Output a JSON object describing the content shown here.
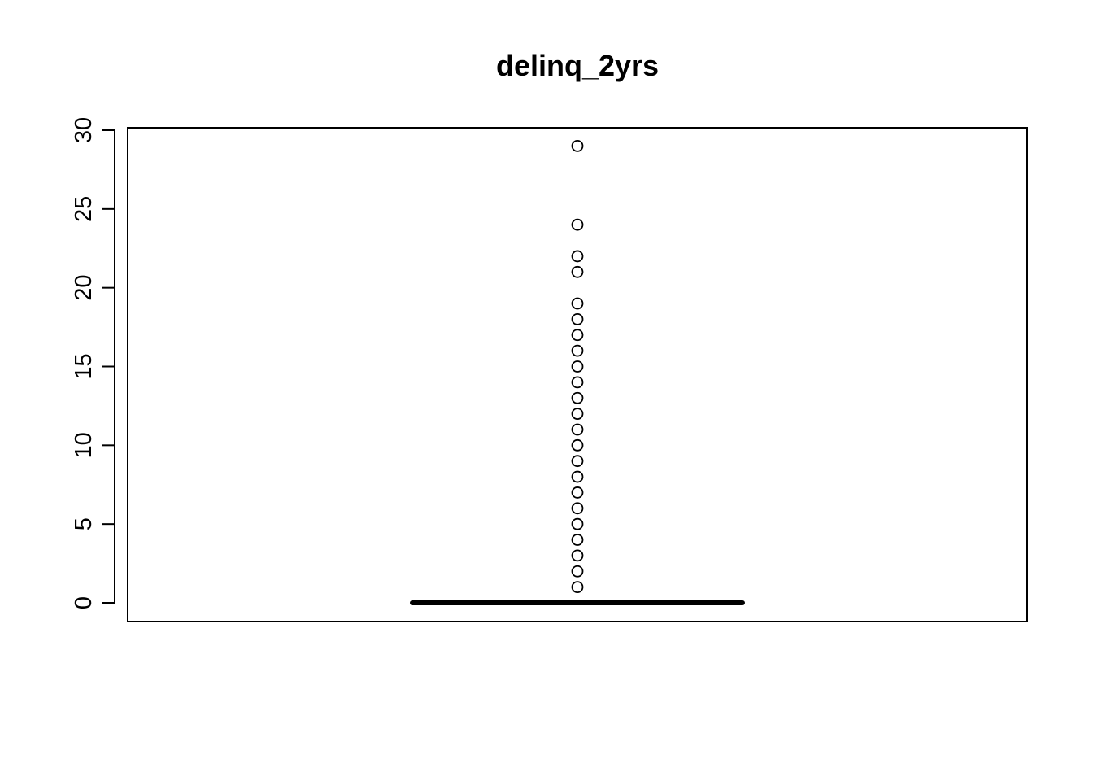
{
  "chart_data": {
    "type": "boxplot",
    "title": "delinq_2yrs",
    "xlabel": "",
    "ylabel": "",
    "ylim": [
      0,
      30
    ],
    "yticks": [
      0,
      5,
      10,
      15,
      20,
      25,
      30
    ],
    "ytick_labels": [
      "0",
      "5",
      "10",
      "15",
      "20",
      "25",
      "30"
    ],
    "grid": false,
    "box": {
      "min": 0,
      "q1": 0,
      "median": 0,
      "q3": 0,
      "max": 0
    },
    "outliers": [
      1,
      2,
      3,
      4,
      5,
      6,
      7,
      8,
      9,
      10,
      11,
      12,
      13,
      14,
      15,
      16,
      17,
      18,
      19,
      21,
      22,
      24,
      29
    ],
    "colors": {
      "stroke": "#000000",
      "background": "#ffffff"
    }
  }
}
